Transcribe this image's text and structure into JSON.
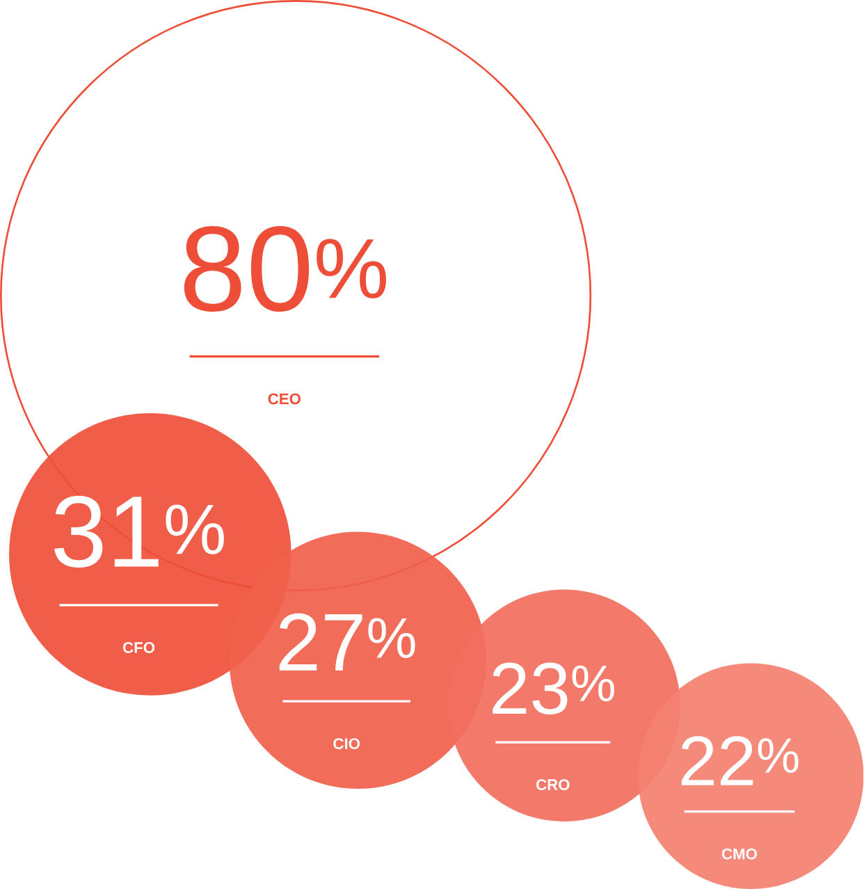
{
  "chart_data": {
    "type": "other",
    "categories": [
      "CEO",
      "CFO",
      "CIO",
      "CRO",
      "CMO"
    ],
    "values": [
      80,
      31,
      27,
      23,
      22
    ],
    "value_labels": [
      "80$^{%}$",
      "31$^{%}$",
      "27$^{%}$",
      "23$^{%}$",
      "22$^{%}$"
    ],
    "colors": [
      "#ee4e37",
      "#ef4f38",
      "#f0614b",
      "#f26f5e",
      "#f48070"
    ]
  }
}
